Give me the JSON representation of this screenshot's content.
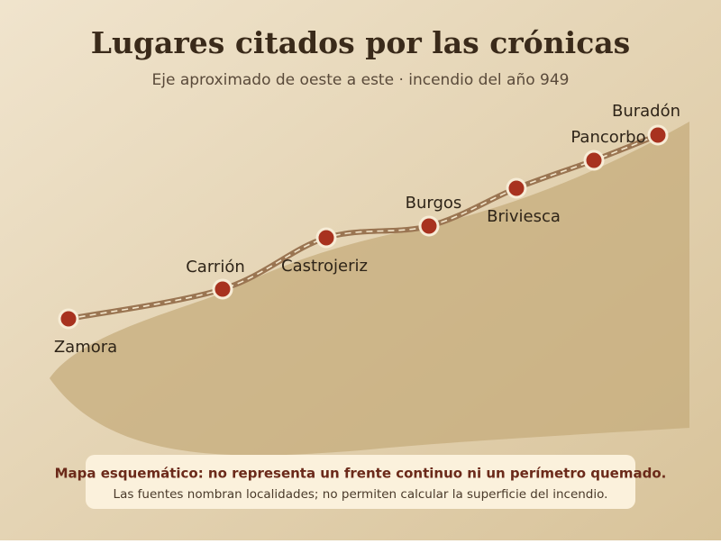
{
  "header": {
    "title": "Lugares citados por las crónicas",
    "subtitle": "Eje aproximado de oeste a este · incendio del año 949"
  },
  "places": [
    "Zamora",
    "Carrión",
    "Castrojeriz",
    "Burgos",
    "Briviesca",
    "Pancorbo",
    "Buradón"
  ],
  "note": {
    "warning": "Mapa esquemático: no representa un frente continuo ni un perímetro quemado.",
    "text": "Las fuentes nombran localidades; no permiten calcular la superficie del incendio."
  }
}
